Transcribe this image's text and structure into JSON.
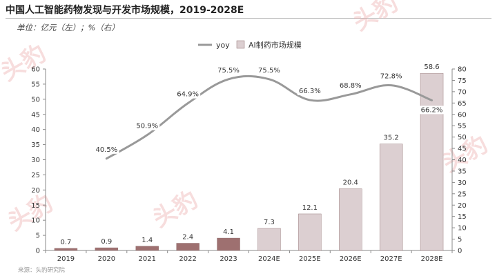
{
  "title": "中国人工智能药物发现与开发市场规模，2019-2028E",
  "unit_note": "单位：亿元（左）；%（右）",
  "source": "来源：头豹研究院",
  "watermark": "头豹",
  "chart_data": {
    "type": "bar+line",
    "categories": [
      "2019",
      "2020",
      "2021",
      "2022",
      "2023",
      "2024E",
      "2025E",
      "2026E",
      "2027E",
      "2028E"
    ],
    "series": [
      {
        "name": "AI制药市场规模",
        "type": "bar",
        "axis": "left",
        "values": [
          0.7,
          0.9,
          1.4,
          2.4,
          4.1,
          7.3,
          12.1,
          20.4,
          35.2,
          58.6
        ],
        "labels": [
          "0.7",
          "0.9",
          "1.4",
          "2.4",
          "4.1",
          "7.3",
          "12.1",
          "20.4",
          "35.2",
          "58.6"
        ],
        "colors": [
          "#9e7070",
          "#9e7070",
          "#9e7070",
          "#9e7070",
          "#9e7070",
          "#dccfd1",
          "#dccfd1",
          "#dccfd1",
          "#dccfd1",
          "#dccfd1"
        ]
      },
      {
        "name": "yoy",
        "type": "line",
        "axis": "right",
        "values": [
          null,
          40.5,
          50.9,
          64.9,
          75.5,
          75.5,
          66.3,
          68.8,
          72.8,
          66.2
        ],
        "labels": [
          "",
          "40.5%",
          "50.9%",
          "64.9%",
          "75.5%",
          "75.5%",
          "66.3%",
          "68.8%",
          "72.8%",
          "66.2%"
        ],
        "color": "#999999"
      }
    ],
    "y_left": {
      "min": 0,
      "max": 60,
      "step": 5
    },
    "y_right": {
      "min": 0,
      "max": 80,
      "step": 5
    },
    "legend_placement": "top-center",
    "grid": false
  }
}
